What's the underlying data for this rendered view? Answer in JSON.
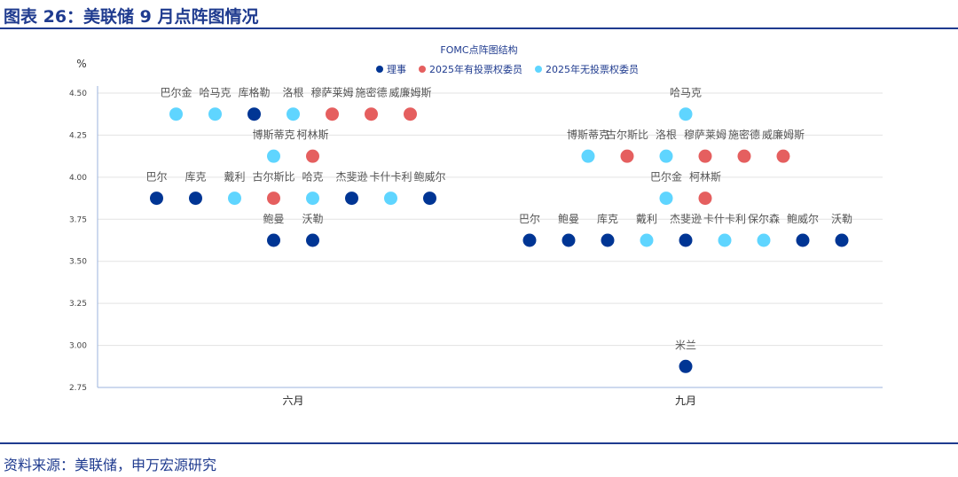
{
  "title": "图表 26：美联储 9 月点阵图情况",
  "source": "资料来源：美联储，申万宏源研究",
  "chart_data": {
    "type": "scatter",
    "title": "FOMC点阵图结构",
    "ylabel": "%",
    "ylim": [
      2.75,
      4.5
    ],
    "yticks": [
      "4.50",
      "4.25",
      "4.00",
      "3.75",
      "3.50",
      "3.25",
      "3.00",
      "2.75"
    ],
    "categories": [
      "六月",
      "九月"
    ],
    "legend": [
      {
        "key": "gov",
        "label": "理事",
        "color": "#003594"
      },
      {
        "key": "vote",
        "label": "2025年有投票权委员",
        "color": "#e55f5f"
      },
      {
        "key": "novote",
        "label": "2025年无投票权委员",
        "color": "#5fd5ff"
      }
    ],
    "groups": [
      {
        "category": "六月",
        "rows": [
          {
            "value": 4.375,
            "members": [
              [
                "巴尔金",
                "novote"
              ],
              [
                "哈马克",
                "novote"
              ],
              [
                "库格勒",
                "gov"
              ],
              [
                "洛根",
                "novote"
              ],
              [
                "穆萨莱姆",
                "vote"
              ],
              [
                "施密德",
                "vote"
              ],
              [
                "威廉姆斯",
                "vote"
              ]
            ]
          },
          {
            "value": 4.125,
            "members": [
              [
                "博斯蒂克",
                "novote"
              ],
              [
                "柯林斯",
                "vote"
              ]
            ]
          },
          {
            "value": 3.875,
            "members": [
              [
                "巴尔",
                "gov"
              ],
              [
                "库克",
                "gov"
              ],
              [
                "戴利",
                "novote"
              ],
              [
                "古尔斯比",
                "vote"
              ],
              [
                "哈克",
                "novote"
              ],
              [
                "杰斐逊",
                "gov"
              ],
              [
                "卡什卡利",
                "novote"
              ],
              [
                "鲍威尔",
                "gov"
              ]
            ]
          },
          {
            "value": 3.625,
            "members": [
              [
                "鲍曼",
                "gov"
              ],
              [
                "沃勒",
                "gov"
              ]
            ]
          }
        ]
      },
      {
        "category": "九月",
        "rows": [
          {
            "value": 4.375,
            "members": [
              [
                "哈马克",
                "novote"
              ]
            ]
          },
          {
            "value": 4.125,
            "members": [
              [
                "博斯蒂克",
                "novote"
              ],
              [
                "古尔斯比",
                "vote"
              ],
              [
                "洛根",
                "novote"
              ],
              [
                "穆萨莱姆",
                "vote"
              ],
              [
                "施密德",
                "vote"
              ],
              [
                "威廉姆斯",
                "vote"
              ]
            ]
          },
          {
            "value": 3.875,
            "members": [
              [
                "巴尔金",
                "novote"
              ],
              [
                "柯林斯",
                "vote"
              ]
            ]
          },
          {
            "value": 3.625,
            "members": [
              [
                "巴尔",
                "gov"
              ],
              [
                "鲍曼",
                "gov"
              ],
              [
                "库克",
                "gov"
              ],
              [
                "戴利",
                "novote"
              ],
              [
                "杰斐逊",
                "gov"
              ],
              [
                "卡什卡利",
                "novote"
              ],
              [
                "保尔森",
                "novote"
              ],
              [
                "鲍威尔",
                "gov"
              ],
              [
                "沃勒",
                "gov"
              ]
            ]
          },
          {
            "value": 2.875,
            "members": [
              [
                "米兰",
                "gov"
              ]
            ]
          }
        ]
      }
    ]
  }
}
